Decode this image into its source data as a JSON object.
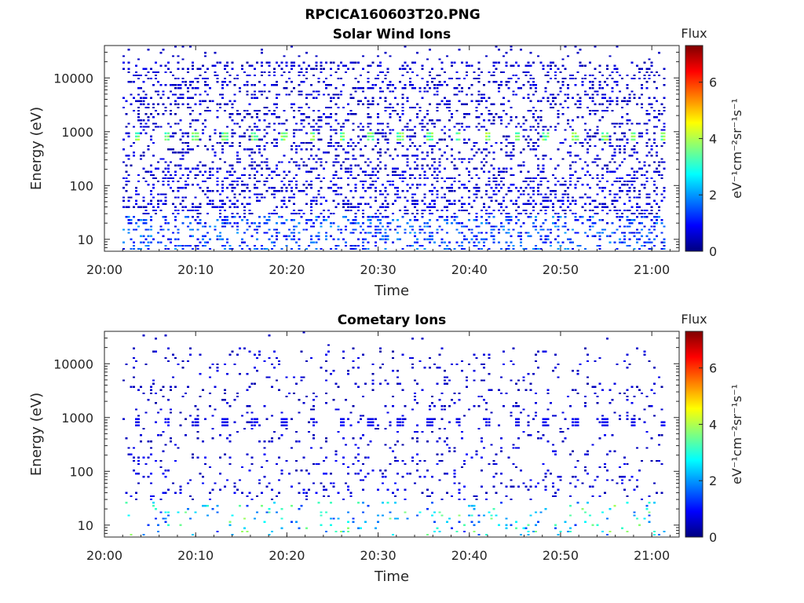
{
  "figure": {
    "title": "RPCICA160603T20.PNG"
  },
  "colormap": {
    "name": "jet",
    "stops": [
      "#00007f",
      "#0000ff",
      "#007fff",
      "#00ffff",
      "#7fff7f",
      "#ffff00",
      "#ff7f00",
      "#ff0000",
      "#7f0000"
    ]
  },
  "chart_data": [
    {
      "type": "heatmap",
      "title": "Solar Wind Ions",
      "xlabel": "Time",
      "ylabel": "Energy (eV)",
      "x_tick_labels": [
        "20:00",
        "20:10",
        "20:20",
        "20:30",
        "20:40",
        "20:50",
        "21:00"
      ],
      "x_ticks_minutes": [
        0,
        10,
        20,
        30,
        40,
        50,
        60
      ],
      "xlim_minutes": [
        0,
        63
      ],
      "data_start_minute": 2,
      "data_end_minute": 61.5,
      "y_scale": "log",
      "y_tick_labels": [
        "10",
        "100",
        "1000",
        "10000"
      ],
      "y_ticks": [
        10,
        100,
        1000,
        10000
      ],
      "ylim": [
        6,
        40000
      ],
      "colorbar": {
        "title": "Flux",
        "label": "eV⁻¹cm⁻²sr⁻¹s⁻¹",
        "ticks": [
          0,
          2,
          4,
          6
        ],
        "range": [
          0,
          7.3
        ]
      },
      "features": {
        "scatter_density": 0.55,
        "flux_level_typical": 0.5,
        "periodic_band_energy": 780,
        "periodic_band_flux": 3.6,
        "periodic_band_minutes": [
          3.5,
          6.7,
          9.9,
          13.1,
          16.3,
          19.5,
          22.7,
          25.9,
          29.1,
          32.3,
          35.5,
          38.7,
          41.9,
          45.1,
          48.3,
          51.5,
          54.7,
          57.9,
          61.1
        ],
        "low_energy_flux": 1.5
      }
    },
    {
      "type": "heatmap",
      "title": "Cometary Ions",
      "xlabel": "Time",
      "ylabel": "Energy (eV)",
      "x_tick_labels": [
        "20:00",
        "20:10",
        "20:20",
        "20:30",
        "20:40",
        "20:50",
        "21:00"
      ],
      "x_ticks_minutes": [
        0,
        10,
        20,
        30,
        40,
        50,
        60
      ],
      "xlim_minutes": [
        0,
        63
      ],
      "data_start_minute": 2,
      "data_end_minute": 61.5,
      "y_scale": "log",
      "y_tick_labels": [
        "10",
        "100",
        "1000",
        "10000"
      ],
      "y_ticks": [
        10,
        100,
        1000,
        10000
      ],
      "ylim": [
        6,
        40000
      ],
      "colorbar": {
        "title": "Flux",
        "label": "eV⁻¹cm⁻²sr⁻¹s⁻¹",
        "ticks": [
          0,
          2,
          4,
          6
        ],
        "range": [
          0,
          7.3
        ]
      },
      "features": {
        "scatter_density": 0.18,
        "flux_level_typical": 0.5,
        "periodic_band_energy": 780,
        "periodic_band_flux": 0.8,
        "periodic_band_minutes": [
          3.5,
          6.7,
          9.9,
          13.1,
          16.3,
          19.5,
          22.7,
          25.9,
          29.1,
          32.3,
          35.5,
          38.7,
          41.9,
          45.1,
          48.3,
          51.5,
          54.7,
          57.9,
          61.1
        ],
        "low_energy_flux": 2.8
      }
    }
  ]
}
